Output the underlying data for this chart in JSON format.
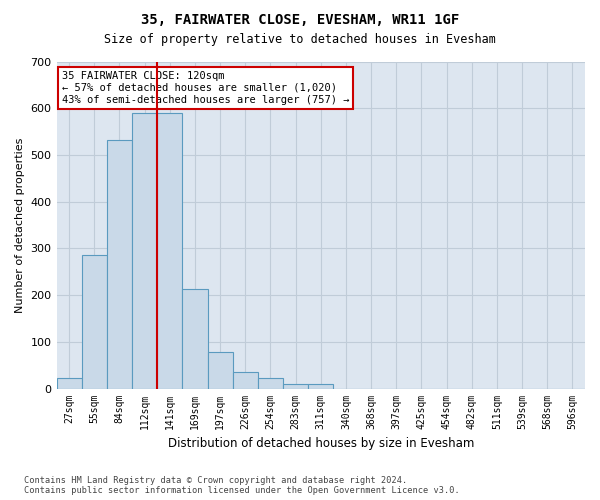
{
  "title": "35, FAIRWATER CLOSE, EVESHAM, WR11 1GF",
  "subtitle": "Size of property relative to detached houses in Evesham",
  "xlabel": "Distribution of detached houses by size in Evesham",
  "ylabel": "Number of detached properties",
  "bin_labels": [
    "27sqm",
    "55sqm",
    "84sqm",
    "112sqm",
    "141sqm",
    "169sqm",
    "197sqm",
    "226sqm",
    "254sqm",
    "283sqm",
    "311sqm",
    "340sqm",
    "368sqm",
    "397sqm",
    "425sqm",
    "454sqm",
    "482sqm",
    "511sqm",
    "539sqm",
    "568sqm",
    "596sqm"
  ],
  "bar_values": [
    22,
    286,
    533,
    590,
    590,
    213,
    79,
    35,
    23,
    10,
    10,
    0,
    0,
    0,
    0,
    0,
    0,
    0,
    0,
    0,
    0
  ],
  "bar_color": "#c9d9e8",
  "bar_edge_color": "#5a9abf",
  "grid_color": "#d0d8e8",
  "vline_x": 3.5,
  "vline_color": "#cc0000",
  "annotation_text": "35 FAIRWATER CLOSE: 120sqm\n← 57% of detached houses are smaller (1,020)\n43% of semi-detached houses are larger (757) →",
  "annotation_box_color": "#ffffff",
  "annotation_box_edge": "#cc0000",
  "ylim": [
    0,
    700
  ],
  "yticks": [
    0,
    100,
    200,
    300,
    400,
    500,
    600,
    700
  ],
  "footer": "Contains HM Land Registry data © Crown copyright and database right 2024.\nContains public sector information licensed under the Open Government Licence v3.0.",
  "bg_color": "#dde6f0"
}
